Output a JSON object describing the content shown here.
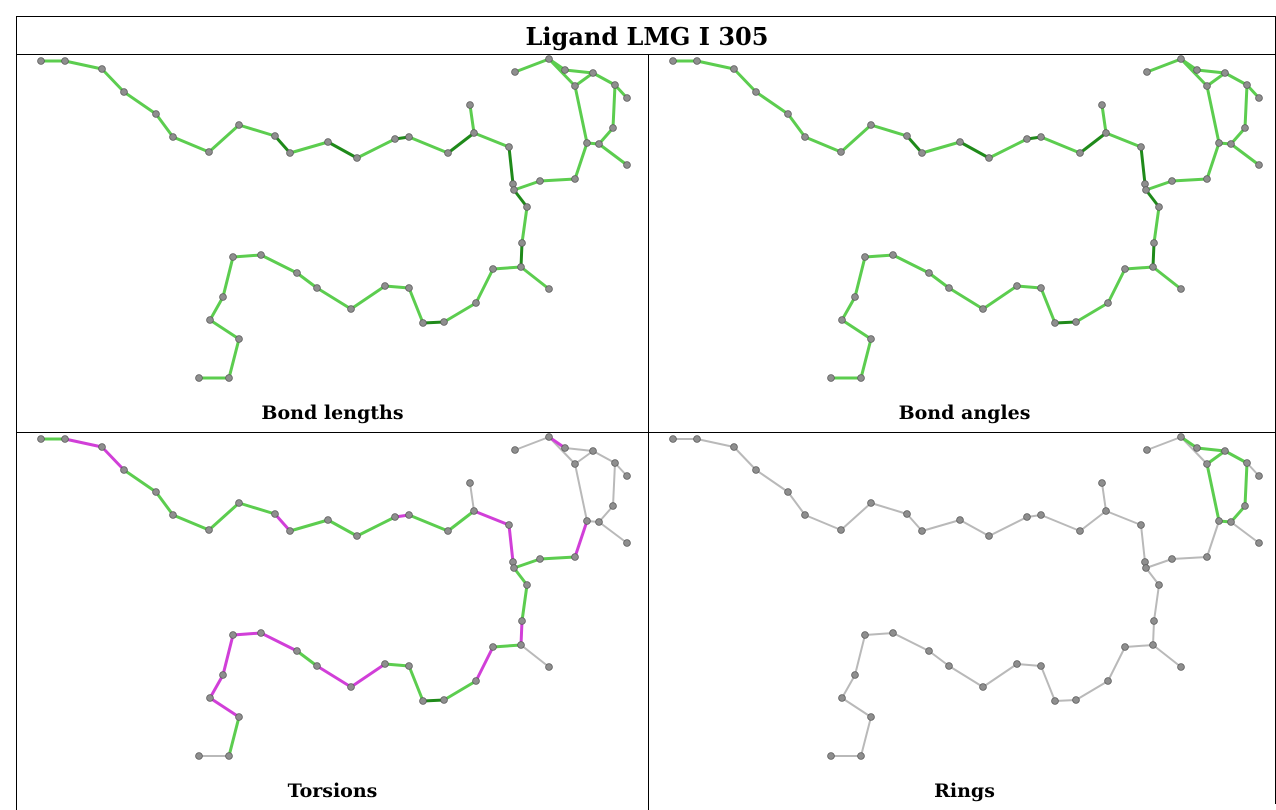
{
  "title": "Ligand LMG I 305",
  "panels": [
    {
      "label": "Bond lengths",
      "mode": "lengths"
    },
    {
      "label": "Bond angles",
      "mode": "angles"
    },
    {
      "label": "Torsions",
      "mode": "torsions"
    },
    {
      "label": "Rings",
      "mode": "rings"
    }
  ],
  "colors": {
    "green": "#5ccd4f",
    "dark_green": "#1f8a1a",
    "magenta": "#d13fd8",
    "gray_bond": "#b9b9b9",
    "atom": "#8e8e8e",
    "atom_stroke": "#5a5a5a"
  }
}
